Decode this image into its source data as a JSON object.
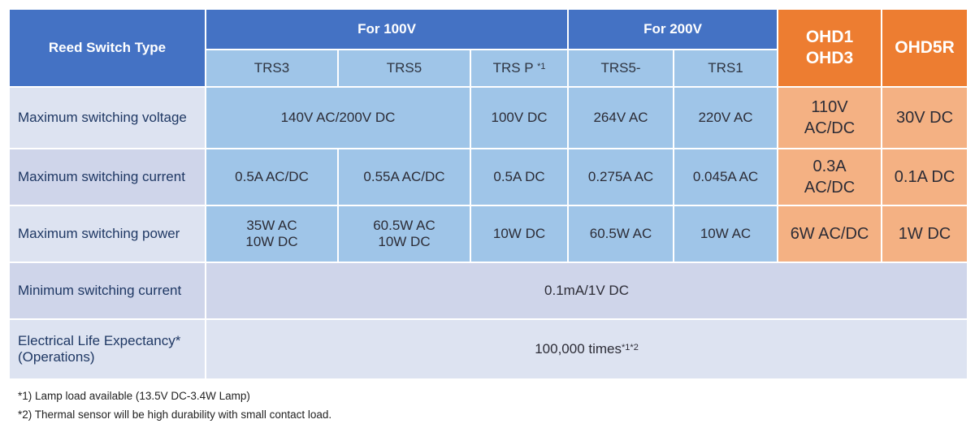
{
  "header": {
    "type_label": "Reed Switch Type",
    "group_100v": "For 100V",
    "group_200v": "For 200V",
    "ohd1": "OHD1",
    "ohd3": "OHD3",
    "ohd5r": "OHD5R",
    "models": {
      "trs3": "TRS3",
      "trs5": "TRS5",
      "trsp": "TRS P",
      "trsp_sup": "*1",
      "trs5m": "TRS5-",
      "trs1": "TRS1"
    }
  },
  "rows": {
    "voltage": {
      "label": "Maximum switching voltage",
      "trs3_trs5": "140V AC/200V DC",
      "trsp": "100V DC",
      "trs5m": "264V AC",
      "trs1": "220V AC",
      "ohd_line1": "110V",
      "ohd_line2": "AC/DC",
      "ohd5r": "30V DC"
    },
    "current": {
      "label": "Maximum switching current",
      "trs3": "0.5A AC/DC",
      "trs5": "0.55A AC/DC",
      "trsp": "0.5A DC",
      "trs5m": "0.275A AC",
      "trs1": "0.045A AC",
      "ohd_line1": "0.3A",
      "ohd_line2": "AC/DC",
      "ohd5r": "0.1A DC"
    },
    "power": {
      "label": "Maximum switching power",
      "trs3_line1": "35W AC",
      "trs3_line2": "10W DC",
      "trs5_line1": "60.5W AC",
      "trs5_line2": "10W DC",
      "trsp": "10W DC",
      "trs5m": "60.5W AC",
      "trs1": "10W AC",
      "ohd": "6W AC/DC",
      "ohd5r": "1W DC"
    },
    "min_current": {
      "label": "Minimum switching current",
      "value": "0.1mA/1V DC"
    },
    "life": {
      "label_line1": "Electrical Life Expectancy*",
      "label_line2": "(Operations)",
      "value": "100,000 times",
      "value_sup": "*1*2"
    }
  },
  "notes": {
    "note1": "*1) Lamp load available (13.5V DC-3.4W Lamp)",
    "note2": "*2) Thermal sensor will be high durability with small contact load."
  }
}
